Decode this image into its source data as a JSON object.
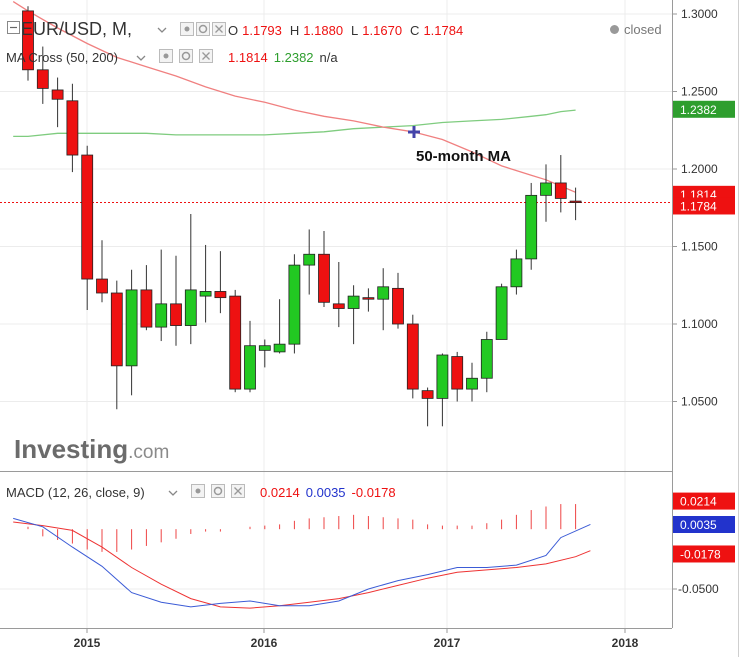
{
  "header": {
    "symbol": "EUR/USD, M,",
    "ohlc": {
      "o_label": "O",
      "o": "1.1793",
      "h_label": "H",
      "h": "1.1880",
      "l_label": "L",
      "l": "1.1670",
      "c_label": "C",
      "c": "1.1784"
    },
    "status": "closed"
  },
  "ma_legend": {
    "name": "MA Cross (50, 200)",
    "v1": "1.1814",
    "v2": "1.2382",
    "v3": "n/a"
  },
  "macd_legend": {
    "name": "MACD (12, 26, close, 9)",
    "v1": "0.0214",
    "v2": "0.0035",
    "v3": "-0.0178"
  },
  "annotation": "50-month MA",
  "watermark": {
    "brand": "Investing",
    "suffix": ".com"
  },
  "colors": {
    "up": "#22c922",
    "down": "#ee1111",
    "ma50": "#f08080",
    "ma200": "#7fcc7f",
    "macd": "#3b5bd6",
    "signal": "#ee3333",
    "hist": "#ee4444",
    "grid": "#ececec",
    "text": "#333333"
  },
  "price_axis": {
    "ticks": [
      "1.3000",
      "1.2500",
      "1.2000",
      "1.1500",
      "1.1000",
      "1.0500"
    ],
    "badges": [
      {
        "text": "1.2382",
        "color": "#2e9e2e"
      },
      {
        "text": "1.1814",
        "color": "#ee1111"
      },
      {
        "text": "1.1784",
        "color": "#ee1111"
      }
    ]
  },
  "macd_axis": {
    "ticks": [
      "-0.0500"
    ],
    "badges": [
      {
        "text": "0.0214",
        "color": "#ee1111"
      },
      {
        "text": "0.0035",
        "color": "#2233cc"
      },
      {
        "text": "-0.0178",
        "color": "#ee1111"
      }
    ]
  },
  "x_axis": {
    "ticks": [
      "2015",
      "2016",
      "2017",
      "2018"
    ]
  },
  "chart_data": {
    "type": "candlestick",
    "symbol": "EUR/USD",
    "interval": "monthly",
    "ylim": [
      1.02,
      1.305
    ],
    "candles": [
      {
        "o": 1.302,
        "h": 1.305,
        "l": 1.257,
        "c": 1.264
      },
      {
        "o": 1.264,
        "h": 1.279,
        "l": 1.242,
        "c": 1.252
      },
      {
        "o": 1.251,
        "h": 1.259,
        "l": 1.227,
        "c": 1.245
      },
      {
        "o": 1.244,
        "h": 1.255,
        "l": 1.198,
        "c": 1.209
      },
      {
        "o": 1.209,
        "h": 1.215,
        "l": 1.109,
        "c": 1.129
      },
      {
        "o": 1.129,
        "h": 1.154,
        "l": 1.114,
        "c": 1.12
      },
      {
        "o": 1.12,
        "h": 1.128,
        "l": 1.045,
        "c": 1.073
      },
      {
        "o": 1.073,
        "h": 1.135,
        "l": 1.054,
        "c": 1.122
      },
      {
        "o": 1.122,
        "h": 1.138,
        "l": 1.096,
        "c": 1.098
      },
      {
        "o": 1.098,
        "h": 1.148,
        "l": 1.089,
        "c": 1.113
      },
      {
        "o": 1.113,
        "h": 1.144,
        "l": 1.086,
        "c": 1.099
      },
      {
        "o": 1.099,
        "h": 1.171,
        "l": 1.087,
        "c": 1.122
      },
      {
        "o": 1.118,
        "h": 1.151,
        "l": 1.101,
        "c": 1.121
      },
      {
        "o": 1.121,
        "h": 1.147,
        "l": 1.107,
        "c": 1.117
      },
      {
        "o": 1.118,
        "h": 1.122,
        "l": 1.056,
        "c": 1.058
      },
      {
        "o": 1.058,
        "h": 1.102,
        "l": 1.056,
        "c": 1.086
      },
      {
        "o": 1.083,
        "h": 1.09,
        "l": 1.072,
        "c": 1.086
      },
      {
        "o": 1.082,
        "h": 1.116,
        "l": 1.081,
        "c": 1.087
      },
      {
        "o": 1.087,
        "h": 1.145,
        "l": 1.081,
        "c": 1.138
      },
      {
        "o": 1.138,
        "h": 1.161,
        "l": 1.119,
        "c": 1.145
      },
      {
        "o": 1.145,
        "h": 1.16,
        "l": 1.111,
        "c": 1.114
      },
      {
        "o": 1.113,
        "h": 1.14,
        "l": 1.098,
        "c": 1.11
      },
      {
        "o": 1.11,
        "h": 1.125,
        "l": 1.087,
        "c": 1.118
      },
      {
        "o": 1.117,
        "h": 1.123,
        "l": 1.108,
        "c": 1.116
      },
      {
        "o": 1.116,
        "h": 1.136,
        "l": 1.096,
        "c": 1.124
      },
      {
        "o": 1.123,
        "h": 1.133,
        "l": 1.097,
        "c": 1.1
      },
      {
        "o": 1.1,
        "h": 1.106,
        "l": 1.052,
        "c": 1.058
      },
      {
        "o": 1.057,
        "h": 1.059,
        "l": 1.034,
        "c": 1.052
      },
      {
        "o": 1.052,
        "h": 1.081,
        "l": 1.034,
        "c": 1.08
      },
      {
        "o": 1.079,
        "h": 1.082,
        "l": 1.05,
        "c": 1.058
      },
      {
        "o": 1.058,
        "h": 1.075,
        "l": 1.05,
        "c": 1.065
      },
      {
        "o": 1.065,
        "h": 1.095,
        "l": 1.056,
        "c": 1.09
      },
      {
        "o": 1.09,
        "h": 1.126,
        "l": 1.09,
        "c": 1.124
      },
      {
        "o": 1.124,
        "h": 1.148,
        "l": 1.119,
        "c": 1.142
      },
      {
        "o": 1.142,
        "h": 1.191,
        "l": 1.135,
        "c": 1.183
      },
      {
        "o": 1.183,
        "h": 1.203,
        "l": 1.166,
        "c": 1.191
      },
      {
        "o": 1.191,
        "h": 1.209,
        "l": 1.172,
        "c": 1.181
      },
      {
        "o": 1.1793,
        "h": 1.188,
        "l": 1.167,
        "c": 1.1784
      }
    ],
    "ma50": [
      [
        -1.0,
        1.308
      ],
      [
        0.0,
        1.302
      ],
      [
        2.0,
        1.291
      ],
      [
        4.0,
        1.281
      ],
      [
        6.0,
        1.272
      ],
      [
        8.0,
        1.266
      ],
      [
        10.0,
        1.26
      ],
      [
        12.0,
        1.253
      ],
      [
        14.0,
        1.247
      ],
      [
        16.0,
        1.243
      ],
      [
        18.0,
        1.238
      ],
      [
        20.0,
        1.234
      ],
      [
        22.0,
        1.231
      ],
      [
        24.0,
        1.227
      ],
      [
        26.0,
        1.224
      ],
      [
        28.0,
        1.219
      ],
      [
        30.0,
        1.211
      ],
      [
        32.0,
        1.202
      ],
      [
        34.0,
        1.196
      ],
      [
        35.0,
        1.193
      ],
      [
        36.0,
        1.189
      ],
      [
        37.0,
        1.185
      ]
    ],
    "ma200": [
      [
        -1.0,
        1.221
      ],
      [
        0.0,
        1.221
      ],
      [
        2.0,
        1.223
      ],
      [
        4.0,
        1.223
      ],
      [
        6.0,
        1.223
      ],
      [
        8.0,
        1.223
      ],
      [
        10.0,
        1.222
      ],
      [
        12.0,
        1.222
      ],
      [
        14.0,
        1.222
      ],
      [
        16.0,
        1.222
      ],
      [
        18.0,
        1.223
      ],
      [
        20.0,
        1.224
      ],
      [
        22.0,
        1.226
      ],
      [
        24.0,
        1.227
      ],
      [
        26.0,
        1.228
      ],
      [
        28.0,
        1.23
      ],
      [
        30.0,
        1.231
      ],
      [
        32.0,
        1.232
      ],
      [
        34.0,
        1.234
      ],
      [
        35.0,
        1.235
      ],
      [
        36.0,
        1.237
      ],
      [
        37.0,
        1.238
      ]
    ],
    "macd_ylim": [
      -0.078,
      0.031
    ],
    "macd_line": [
      [
        -1.0,
        0.009
      ],
      [
        1.0,
        0.002
      ],
      [
        3.0,
        -0.015
      ],
      [
        5.0,
        -0.031
      ],
      [
        7.0,
        -0.053
      ],
      [
        9.0,
        -0.061
      ],
      [
        11.0,
        -0.065
      ],
      [
        13.0,
        -0.062
      ],
      [
        15.0,
        -0.06
      ],
      [
        17.0,
        -0.064
      ],
      [
        19.0,
        -0.064
      ],
      [
        21.0,
        -0.06
      ],
      [
        23.0,
        -0.05
      ],
      [
        25.0,
        -0.043
      ],
      [
        27.0,
        -0.038
      ],
      [
        29.0,
        -0.032
      ],
      [
        31.0,
        -0.032
      ],
      [
        33.0,
        -0.03
      ],
      [
        35.0,
        -0.022
      ],
      [
        36.0,
        -0.007
      ],
      [
        38.0,
        0.004
      ]
    ],
    "signal_line": [
      [
        -1.0,
        0.006
      ],
      [
        1.0,
        0.003
      ],
      [
        3.0,
        -0.001
      ],
      [
        5.0,
        -0.015
      ],
      [
        7.0,
        -0.032
      ],
      [
        9.0,
        -0.046
      ],
      [
        11.0,
        -0.058
      ],
      [
        13.0,
        -0.065
      ],
      [
        15.0,
        -0.066
      ],
      [
        17.0,
        -0.064
      ],
      [
        19.0,
        -0.061
      ],
      [
        21.0,
        -0.058
      ],
      [
        23.0,
        -0.053
      ],
      [
        25.0,
        -0.047
      ],
      [
        27.0,
        -0.041
      ],
      [
        29.0,
        -0.036
      ],
      [
        31.0,
        -0.034
      ],
      [
        33.0,
        -0.032
      ],
      [
        35.0,
        -0.029
      ],
      [
        37.0,
        -0.023
      ],
      [
        38.0,
        -0.018
      ]
    ],
    "macd_hist": [
      0.002,
      -0.006,
      -0.009,
      -0.012,
      -0.017,
      -0.019,
      -0.019,
      -0.017,
      -0.014,
      -0.011,
      -0.008,
      -0.004,
      -0.002,
      -0.002,
      0.0,
      0.002,
      0.003,
      0.004,
      0.007,
      0.009,
      0.01,
      0.011,
      0.012,
      0.011,
      0.01,
      0.009,
      0.008,
      0.004,
      0.003,
      0.003,
      0.003,
      0.005,
      0.008,
      0.012,
      0.016,
      0.019,
      0.021,
      0.021
    ]
  }
}
